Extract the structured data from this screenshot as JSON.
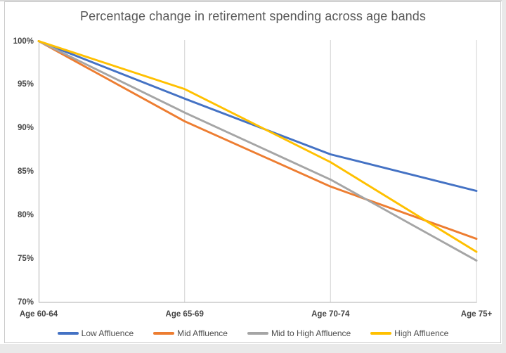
{
  "chart_data": {
    "type": "line",
    "title": "Percentage change in retirement spending across age bands",
    "categories": [
      "Age 60-64",
      "Age 65-69",
      "Age 70-74",
      "Age 75+"
    ],
    "series": [
      {
        "name": "Low Affluence",
        "color": "#4472C4",
        "values": [
          100,
          93.4,
          87.0,
          82.8
        ]
      },
      {
        "name": "Mid Affluence",
        "color": "#ED7D31",
        "values": [
          100,
          90.8,
          83.3,
          77.3
        ]
      },
      {
        "name": "Mid to High Affluence",
        "color": "#A5A5A5",
        "values": [
          100,
          91.8,
          84.1,
          74.8
        ]
      },
      {
        "name": "High Affluence",
        "color": "#FFC000",
        "values": [
          100,
          94.5,
          86.1,
          75.8
        ]
      }
    ],
    "y_axis": {
      "min": 70,
      "max": 100,
      "step": 5,
      "unit": "%",
      "tick_labels": [
        "100%",
        "95%",
        "90%",
        "85%",
        "80%",
        "75%",
        "70%"
      ]
    },
    "grid": "vertical-gridlines-only",
    "legend_position": "bottom",
    "axis_color": "#BFBFBF",
    "gridline_color": "#D9D9D9"
  }
}
